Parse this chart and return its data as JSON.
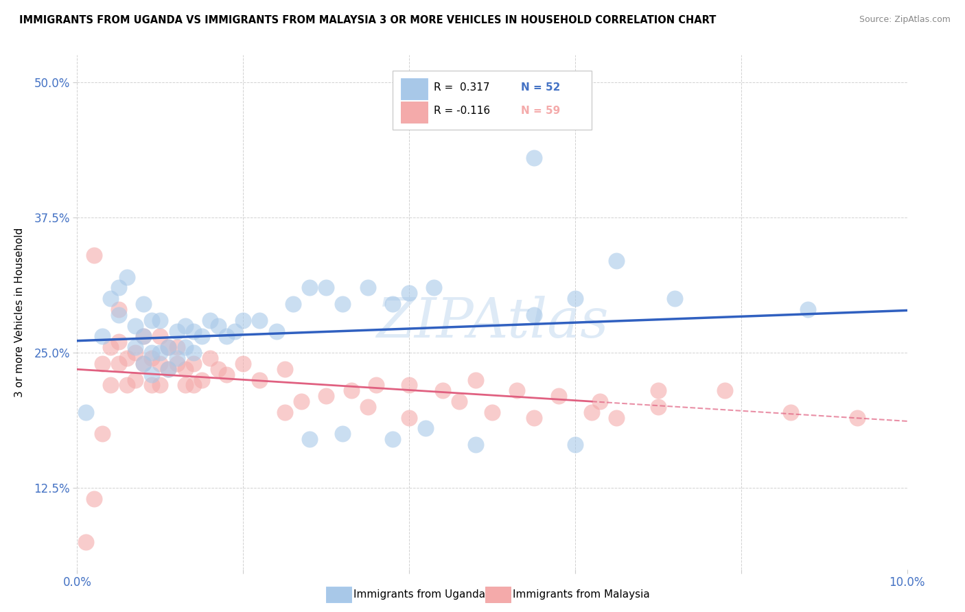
{
  "title": "IMMIGRANTS FROM UGANDA VS IMMIGRANTS FROM MALAYSIA 3 OR MORE VEHICLES IN HOUSEHOLD CORRELATION CHART",
  "source": "Source: ZipAtlas.com",
  "ylabel": "3 or more Vehicles in Household",
  "xlim": [
    0.0,
    0.1
  ],
  "ylim": [
    0.05,
    0.525
  ],
  "xticks": [
    0.0,
    0.02,
    0.04,
    0.06,
    0.08,
    0.1
  ],
  "xticklabels": [
    "0.0%",
    "",
    "",
    "",
    "",
    "10.0%"
  ],
  "yticks": [
    0.125,
    0.25,
    0.375,
    0.5
  ],
  "yticklabels": [
    "12.5%",
    "25.0%",
    "37.5%",
    "50.0%"
  ],
  "legend_R1": "R =  0.317",
  "legend_N1": "N = 52",
  "legend_R2": "R = -0.116",
  "legend_N2": "N = 59",
  "color_uganda": "#a8c8e8",
  "color_malaysia": "#f4aaaa",
  "color_uganda_line": "#3060c0",
  "color_malaysia_line": "#e06080",
  "label_uganda": "Immigrants from Uganda",
  "label_malaysia": "Immigrants from Malaysia",
  "watermark": "ZIPAtlas",
  "uganda_x": [
    0.001,
    0.003,
    0.004,
    0.005,
    0.005,
    0.006,
    0.007,
    0.007,
    0.008,
    0.008,
    0.008,
    0.009,
    0.009,
    0.009,
    0.01,
    0.01,
    0.011,
    0.011,
    0.012,
    0.012,
    0.013,
    0.013,
    0.014,
    0.014,
    0.015,
    0.016,
    0.017,
    0.018,
    0.019,
    0.02,
    0.022,
    0.024,
    0.026,
    0.028,
    0.03,
    0.032,
    0.035,
    0.038,
    0.04,
    0.043,
    0.028,
    0.032,
    0.038,
    0.042,
    0.048,
    0.055,
    0.06,
    0.065,
    0.055,
    0.072,
    0.06,
    0.088
  ],
  "uganda_y": [
    0.195,
    0.265,
    0.3,
    0.31,
    0.285,
    0.32,
    0.255,
    0.275,
    0.24,
    0.265,
    0.295,
    0.23,
    0.25,
    0.28,
    0.25,
    0.28,
    0.235,
    0.255,
    0.245,
    0.27,
    0.255,
    0.275,
    0.25,
    0.27,
    0.265,
    0.28,
    0.275,
    0.265,
    0.27,
    0.28,
    0.28,
    0.27,
    0.295,
    0.31,
    0.31,
    0.295,
    0.31,
    0.295,
    0.305,
    0.31,
    0.17,
    0.175,
    0.17,
    0.18,
    0.165,
    0.285,
    0.3,
    0.335,
    0.43,
    0.3,
    0.165,
    0.29
  ],
  "malaysia_x": [
    0.001,
    0.002,
    0.002,
    0.003,
    0.003,
    0.004,
    0.004,
    0.005,
    0.005,
    0.005,
    0.006,
    0.006,
    0.007,
    0.007,
    0.008,
    0.008,
    0.009,
    0.009,
    0.01,
    0.01,
    0.01,
    0.011,
    0.011,
    0.012,
    0.012,
    0.013,
    0.013,
    0.014,
    0.014,
    0.015,
    0.016,
    0.017,
    0.018,
    0.02,
    0.022,
    0.025,
    0.027,
    0.03,
    0.033,
    0.036,
    0.04,
    0.044,
    0.048,
    0.053,
    0.058,
    0.063,
    0.07,
    0.078,
    0.086,
    0.094,
    0.025,
    0.035,
    0.04,
    0.046,
    0.05,
    0.055,
    0.062,
    0.065,
    0.07
  ],
  "malaysia_y": [
    0.075,
    0.115,
    0.34,
    0.175,
    0.24,
    0.22,
    0.255,
    0.24,
    0.26,
    0.29,
    0.22,
    0.245,
    0.225,
    0.25,
    0.24,
    0.265,
    0.22,
    0.245,
    0.22,
    0.24,
    0.265,
    0.235,
    0.255,
    0.24,
    0.255,
    0.235,
    0.22,
    0.22,
    0.24,
    0.225,
    0.245,
    0.235,
    0.23,
    0.24,
    0.225,
    0.235,
    0.205,
    0.21,
    0.215,
    0.22,
    0.22,
    0.215,
    0.225,
    0.215,
    0.21,
    0.205,
    0.215,
    0.215,
    0.195,
    0.19,
    0.195,
    0.2,
    0.19,
    0.205,
    0.195,
    0.19,
    0.195,
    0.19,
    0.2
  ]
}
